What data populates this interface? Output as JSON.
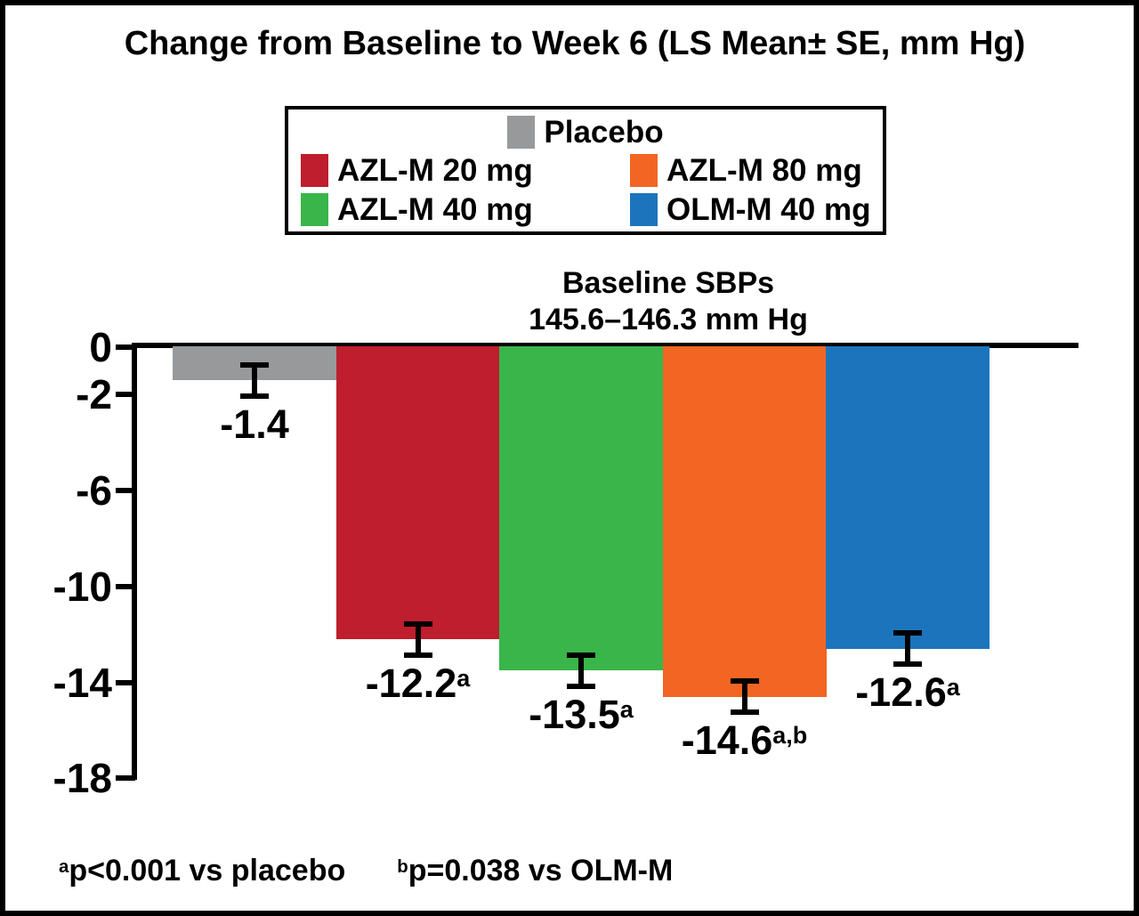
{
  "title": "Change from Baseline to Week 6 (LS Mean± SE, mm Hg)",
  "annotation": {
    "line1": "Baseline SBPs",
    "line2": "145.6–146.3 mm Hg"
  },
  "colors": {
    "placebo": "#97999b",
    "azlm20": "#be1e2d",
    "azlm40": "#39b54a",
    "azlm80": "#f26522",
    "olmm40": "#1c75bc",
    "axis": "#000000",
    "background": "#ffffff"
  },
  "legend": {
    "rows": [
      [
        {
          "key": "placebo",
          "label": "Placebo"
        }
      ],
      [
        {
          "key": "azlm20",
          "label": "AZL-M 20 mg"
        },
        {
          "key": "azlm80",
          "label": "AZL-M 80 mg"
        }
      ],
      [
        {
          "key": "azlm40",
          "label": "AZL-M 40 mg"
        },
        {
          "key": "olmm40",
          "label": "OLM-M 40 mg"
        }
      ]
    ]
  },
  "chart_data": {
    "type": "bar",
    "title": "Change from Baseline to Week 6 (LS Mean± SE, mm Hg)",
    "categories": [
      "Placebo",
      "AZL-M 20 mg",
      "AZL-M 40 mg",
      "AZL-M 80 mg",
      "OLM-M 40 mg"
    ],
    "series_keys": [
      "placebo",
      "azlm20",
      "azlm40",
      "azlm80",
      "olmm40"
    ],
    "values": [
      -1.4,
      -12.2,
      -13.5,
      -14.6,
      -12.6
    ],
    "se": [
      0.65,
      0.65,
      0.65,
      0.65,
      0.65
    ],
    "bar_labels": [
      {
        "value": "-1.4",
        "sup": ""
      },
      {
        "value": "-12.2",
        "sup": "a"
      },
      {
        "value": "-13.5",
        "sup": "a"
      },
      {
        "value": "-14.6",
        "sup": "a,b"
      },
      {
        "value": "-12.6",
        "sup": "a"
      }
    ],
    "series_colors": [
      "#97999b",
      "#be1e2d",
      "#39b54a",
      "#f26522",
      "#1c75bc"
    ],
    "yticks": [
      0,
      -2,
      -6,
      -10,
      -14,
      -18
    ],
    "ytick_labels": [
      "0",
      "-2",
      "-6",
      "-10",
      "-14",
      "-18"
    ],
    "ylim": [
      -18,
      0
    ],
    "xlabel": "",
    "ylabel": "",
    "grid": false,
    "error_bars": true,
    "legend_position": "top-center",
    "annotation": "Baseline SBPs 145.6–146.3 mm Hg"
  },
  "footnotes": [
    {
      "sup": "a",
      "text": "p<0.001 vs placebo"
    },
    {
      "sup": "b",
      "text": "p=0.038 vs OLM-M"
    }
  ]
}
